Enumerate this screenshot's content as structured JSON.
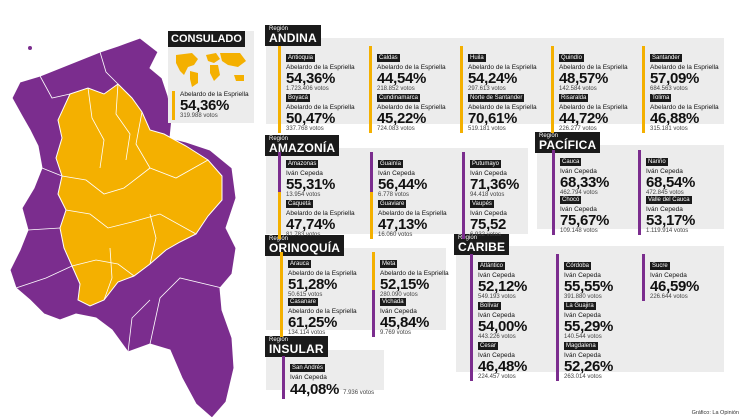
{
  "colors": {
    "petro": "#7b2d8e",
    "fajardo": "#f4b000",
    "panel": "#ececec",
    "label_bg": "#1a1a1a"
  },
  "consulado": {
    "title": "CONSULADO",
    "candidate": "Abelardo de la Espriella",
    "pct": "54,36%",
    "votes": "319.988 votos",
    "color": "fajardo"
  },
  "regions": {
    "andina": {
      "prefix": "Región",
      "name": "ANDINA",
      "items": [
        {
          "dept": "Antioquia",
          "candidate": "Abelardo de la Espriella",
          "pct": "54,36%",
          "votes": "1.723.406 votos",
          "color": "fajardo"
        },
        {
          "dept": "Caldas",
          "candidate": "Abelardo de la Espriella",
          "pct": "44,54%",
          "votes": "218.852 votos",
          "color": "fajardo"
        },
        {
          "dept": "Huila",
          "candidate": "Abelardo de la Espriella",
          "pct": "54,24%",
          "votes": "297.613 votos",
          "color": "fajardo"
        },
        {
          "dept": "Quindío",
          "candidate": "Abelardo de la Espriella",
          "pct": "48,57%",
          "votes": "142.584 votos",
          "color": "fajardo"
        },
        {
          "dept": "Santander",
          "candidate": "Abelardo de la Espriella",
          "pct": "57,09%",
          "votes": "684.563 votos",
          "color": "fajardo"
        },
        {
          "dept": "Boyacá",
          "candidate": "Abelardo de la Espriella",
          "pct": "50,47%",
          "votes": "337.768 votos",
          "color": "fajardo"
        },
        {
          "dept": "Cundinamarca",
          "candidate": "Abelardo de la Espriella",
          "pct": "45,22%",
          "votes": "724.083 votos",
          "color": "fajardo"
        },
        {
          "dept": "Norte de Santander",
          "candidate": "Abelardo de la Espriella",
          "pct": "70,61%",
          "votes": "519.181 votos",
          "color": "fajardo"
        },
        {
          "dept": "Risaralda",
          "candidate": "Abelardo de la Espriella",
          "pct": "44,72%",
          "votes": "226.277 votos",
          "color": "fajardo"
        },
        {
          "dept": "Tolima",
          "candidate": "Abelardo de la Espriella",
          "pct": "46,88%",
          "votes": "315.181 votos",
          "color": "fajardo"
        }
      ]
    },
    "amazonia": {
      "prefix": "Región",
      "name": "AMAZONÍA",
      "items": [
        {
          "dept": "Amazonas",
          "candidate": "Iván Cepeda",
          "pct": "55,31%",
          "votes": "13.954 votos",
          "color": "petro"
        },
        {
          "dept": "Guainía",
          "candidate": "Iván Cepeda",
          "pct": "56,44%",
          "votes": "6.778 votos",
          "color": "petro"
        },
        {
          "dept": "Putumayo",
          "candidate": "Iván Cepeda",
          "pct": "71,36%",
          "votes": "94.418 votos",
          "color": "petro"
        },
        {
          "dept": "Caquetá",
          "candidate": "Abelardo de la Espriella",
          "pct": "47,74%",
          "votes": "81.783 votos",
          "color": "fajardo"
        },
        {
          "dept": "Guaviare",
          "candidate": "Abelardo de la Espriella",
          "pct": "47,13%",
          "votes": "16.060 votos",
          "color": "fajardo"
        },
        {
          "dept": "Vaupés",
          "candidate": "Iván Cepeda",
          "pct": "75,52",
          "votes": "6.932 votos",
          "color": "petro"
        }
      ]
    },
    "pacifica": {
      "prefix": "Región",
      "name": "PACÍFICA",
      "items": [
        {
          "dept": "Cauca",
          "candidate": "Iván Cepeda",
          "pct": "68,33%",
          "votes": "462.794 votos",
          "color": "petro"
        },
        {
          "dept": "Nariño",
          "candidate": "Iván Cepeda",
          "pct": "68,54%",
          "votes": "472.845 votos",
          "color": "petro"
        },
        {
          "dept": "Chocó",
          "candidate": "Iván Cepeda",
          "pct": "75,67%",
          "votes": "109.148 votos",
          "color": "petro"
        },
        {
          "dept": "Valle del Cauca",
          "candidate": "Iván Cepeda",
          "pct": "53,17%",
          "votes": "1.119.914 votos",
          "color": "petro"
        }
      ]
    },
    "orinoquia": {
      "prefix": "Región",
      "name": "ORINOQUÍA",
      "items": [
        {
          "dept": "Arauca",
          "candidate": "Abelardo de la Espriella",
          "pct": "51,28%",
          "votes": "50.615 votos",
          "color": "fajardo"
        },
        {
          "dept": "Meta",
          "candidate": "Abelardo de la Espriella",
          "pct": "52,15%",
          "votes": "280.090 votos",
          "color": "fajardo"
        },
        {
          "dept": "Casanare",
          "candidate": "Abelardo de la Espriella",
          "pct": "61,25%",
          "votes": "134.114 votos",
          "color": "fajardo"
        },
        {
          "dept": "Vichada",
          "candidate": "Iván Cepeda",
          "pct": "45,84%",
          "votes": "9.769 votos",
          "color": "petro"
        }
      ]
    },
    "caribe": {
      "prefix": "Región",
      "name": "CARIBE",
      "items": [
        {
          "dept": "Atlántico",
          "candidate": "Iván Cepeda",
          "pct": "52,12%",
          "votes": "549.193 votos",
          "color": "petro"
        },
        {
          "dept": "Córdoba",
          "candidate": "Iván Cepeda",
          "pct": "55,55%",
          "votes": "391.880 votos",
          "color": "petro"
        },
        {
          "dept": "Sucre",
          "candidate": "Iván Cepeda",
          "pct": "46,59%",
          "votes": "226.644 votos",
          "color": "petro"
        },
        {
          "dept": "Bolívar",
          "candidate": "Iván Cepeda",
          "pct": "54,00%",
          "votes": "443.226 votos",
          "color": "petro"
        },
        {
          "dept": "La Guajira",
          "candidate": "Iván Cepeda",
          "pct": "55,29%",
          "votes": "140.544 votos",
          "color": "petro"
        },
        {
          "dept": "Cesar",
          "candidate": "Iván Cepeda",
          "pct": "46,48%",
          "votes": "224.457 votos",
          "color": "petro"
        },
        {
          "dept": "Magdalena",
          "candidate": "Iván Cepeda",
          "pct": "52,26%",
          "votes": "263.014 votos",
          "color": "petro"
        }
      ]
    },
    "insular": {
      "prefix": "Región",
      "name": "INSULAR",
      "items": [
        {
          "dept": "San Andrés",
          "candidate": "Iván Cepeda",
          "pct": "44,08%",
          "votes": "7.936 votos",
          "color": "petro"
        }
      ]
    }
  },
  "credit": "Gráfico: La Opinión"
}
